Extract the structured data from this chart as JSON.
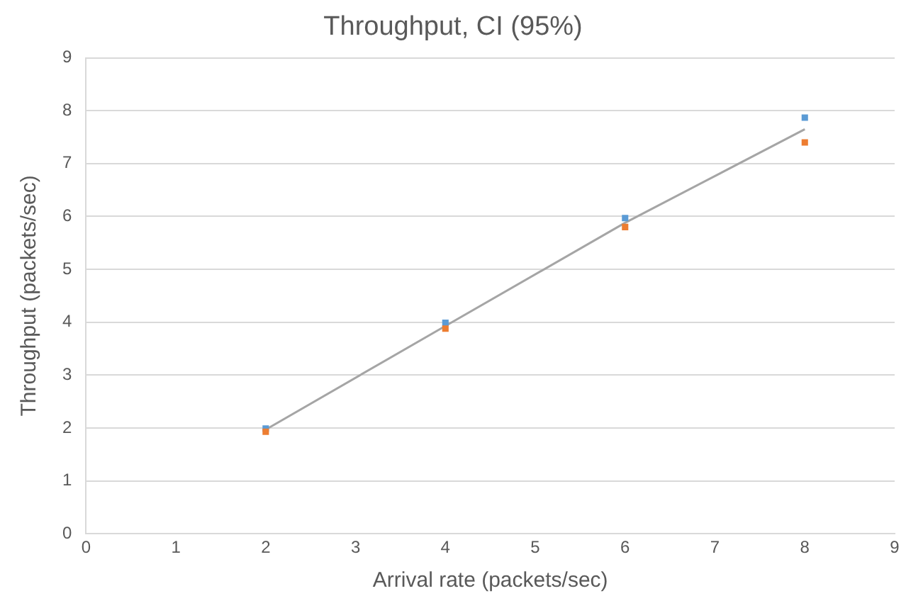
{
  "chart_data": {
    "type": "line",
    "title": "Throughput, CI (95%)",
    "xlabel": "Arrival rate (packets/sec)",
    "ylabel": "Throughput (packets/sec)",
    "x": [
      2,
      4,
      6,
      8
    ],
    "series": [
      {
        "color": "#a5a5a5",
        "values": [
          1.97,
          3.93,
          5.88,
          7.65
        ],
        "marker": "none"
      },
      {
        "type": "scatter",
        "color": "#5b9bd5",
        "values": [
          1.99,
          3.99,
          5.97,
          7.87
        ],
        "marker": "square"
      },
      {
        "type": "scatter",
        "color": "#ed7d31",
        "values": [
          1.93,
          3.88,
          5.8,
          7.4
        ],
        "marker": "square"
      }
    ],
    "xlim": [
      0,
      9
    ],
    "xticks": [
      0,
      1,
      2,
      3,
      4,
      5,
      6,
      7,
      8,
      9
    ],
    "ylim": [
      0,
      9
    ],
    "yticks": [
      0,
      1,
      2,
      3,
      4,
      5,
      6,
      7,
      8,
      9
    ],
    "grid": "y",
    "legend": false
  }
}
